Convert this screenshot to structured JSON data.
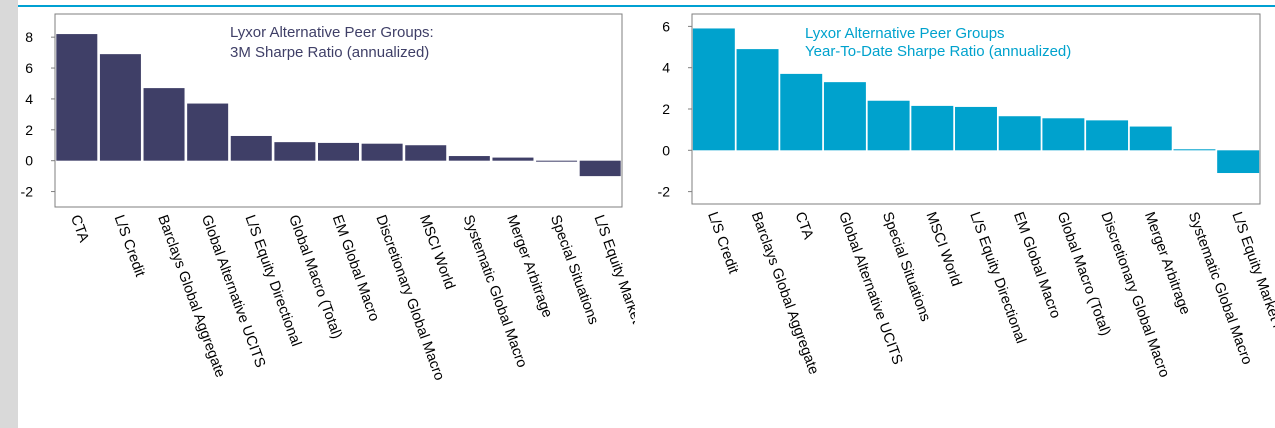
{
  "colors": {
    "left_bars": "#3f3f67",
    "right_bars": "#00a2cd",
    "accent_rule": "#00a0d2"
  },
  "chart_data": [
    {
      "type": "bar",
      "title": "Lyxor Alternative Peer Groups:",
      "subtitle": "3M Sharpe Ratio (annualized)",
      "ylim": [
        -3,
        9.5
      ],
      "yticks": [
        8,
        6,
        4,
        2,
        0,
        -2
      ],
      "ytick_labels": [
        "8",
        "6",
        "4",
        "2",
        "0",
        "-2"
      ],
      "categories": [
        "CTA",
        "L/S Credit",
        "Barclays Global Aggregate",
        "Global Alternative UCITS",
        "L/S Equity Directional",
        "Global Macro (Total)",
        "EM Global Macro",
        "Discretionary Global Macro",
        "MSCI World",
        "Systematic Global Macro",
        "Merger Arbitrage",
        "Special Situations",
        "L/S Equity Market Neutral"
      ],
      "values": [
        8.2,
        6.9,
        4.7,
        3.7,
        1.6,
        1.2,
        1.15,
        1.1,
        1.0,
        0.3,
        0.2,
        -0.05,
        -1.0
      ],
      "legend": "none",
      "grid": false
    },
    {
      "type": "bar",
      "title": "Lyxor Alternative Peer Groups",
      "subtitle": "Year-To-Date Sharpe Ratio (annualized)",
      "ylim": [
        -2.6,
        6.6
      ],
      "yticks": [
        6,
        4,
        2,
        0,
        -2
      ],
      "ytick_labels": [
        "6",
        "4",
        "2",
        "0",
        "-2"
      ],
      "categories": [
        "L/S Credit",
        "Barclays Global Aggregate",
        "CTA",
        "Global Alternative UCITS",
        "Special Situations",
        "MSCI World",
        "L/S Equity Directional",
        "EM Global Macro",
        "Global Macro (Total)",
        "Discretionary Global Macro",
        "Merger Arbitrage",
        "Systematic Global Macro",
        "L/S Equity Market Neutral"
      ],
      "values": [
        5.9,
        4.9,
        3.7,
        3.3,
        2.4,
        2.15,
        2.1,
        1.65,
        1.55,
        1.45,
        1.15,
        0.05,
        -1.1
      ],
      "legend": "none",
      "grid": false
    }
  ]
}
